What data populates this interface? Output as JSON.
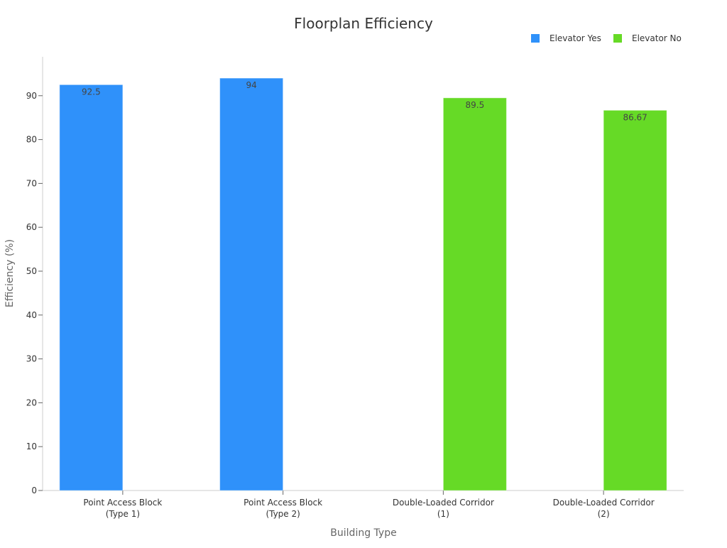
{
  "chart_data": {
    "type": "bar",
    "title": "Floorplan Efficiency",
    "xlabel": "Building Type",
    "ylabel": "Efficiency (%)",
    "ylim": [
      0,
      99
    ],
    "yticks": [
      0,
      10,
      20,
      30,
      40,
      50,
      60,
      70,
      80,
      90
    ],
    "grid": false,
    "legend_position": "top-right",
    "categories": [
      [
        "Point Access Block",
        "(Type 1)"
      ],
      [
        "Point Access Block",
        "(Type 2)"
      ],
      [
        "Double-Loaded Corridor",
        "(1)"
      ],
      [
        "Double-Loaded Corridor",
        "(2)"
      ]
    ],
    "series": [
      {
        "name": "Elevator Yes",
        "color": "#2f91fa",
        "values": [
          92.5,
          94,
          null,
          null
        ],
        "labels": [
          "92.5",
          "94",
          "",
          ""
        ]
      },
      {
        "name": "Elevator No",
        "color": "#66da26",
        "values": [
          null,
          null,
          89.5,
          86.67
        ],
        "labels": [
          "",
          "",
          "89.5",
          "86.67"
        ]
      }
    ]
  }
}
